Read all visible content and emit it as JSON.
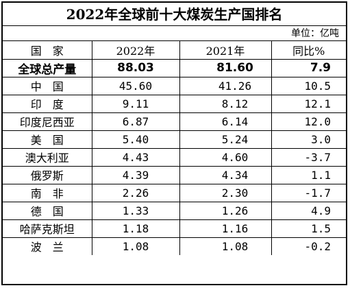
{
  "chart_data": {
    "type": "table",
    "title": "2022年全球前十大煤炭生产国排名",
    "unit": "单位：亿吨",
    "columns": [
      "国　家",
      "2022年",
      "2021年",
      "同比%"
    ],
    "total": {
      "name": "全球总产量",
      "y2022": "88.03",
      "y2021": "81.60",
      "yoy": "7.9"
    },
    "rows": [
      {
        "name": "中　国",
        "y2022": "45.60",
        "y2021": "41.26",
        "yoy": "10.5"
      },
      {
        "name": "印　度",
        "y2022": "9.11",
        "y2021": "8.12",
        "yoy": "12.1"
      },
      {
        "name": "印度尼西亚",
        "y2022": "6.87",
        "y2021": "6.14",
        "yoy": "12.0"
      },
      {
        "name": "美　国",
        "y2022": "5.40",
        "y2021": "5.24",
        "yoy": "3.0"
      },
      {
        "name": "澳大利亚",
        "y2022": "4.43",
        "y2021": "4.60",
        "yoy": "-3.7"
      },
      {
        "name": "俄罗斯",
        "y2022": "4.39",
        "y2021": "4.34",
        "yoy": "1.1"
      },
      {
        "name": "南　非",
        "y2022": "2.26",
        "y2021": "2.30",
        "yoy": "-1.7"
      },
      {
        "name": "德　国",
        "y2022": "1.33",
        "y2021": "1.26",
        "yoy": "4.9"
      },
      {
        "name": "哈萨克斯坦",
        "y2022": "1.18",
        "y2021": "1.16",
        "yoy": "1.5"
      },
      {
        "name": "波　兰",
        "y2022": "1.08",
        "y2021": "1.08",
        "yoy": "-0.2"
      }
    ]
  }
}
